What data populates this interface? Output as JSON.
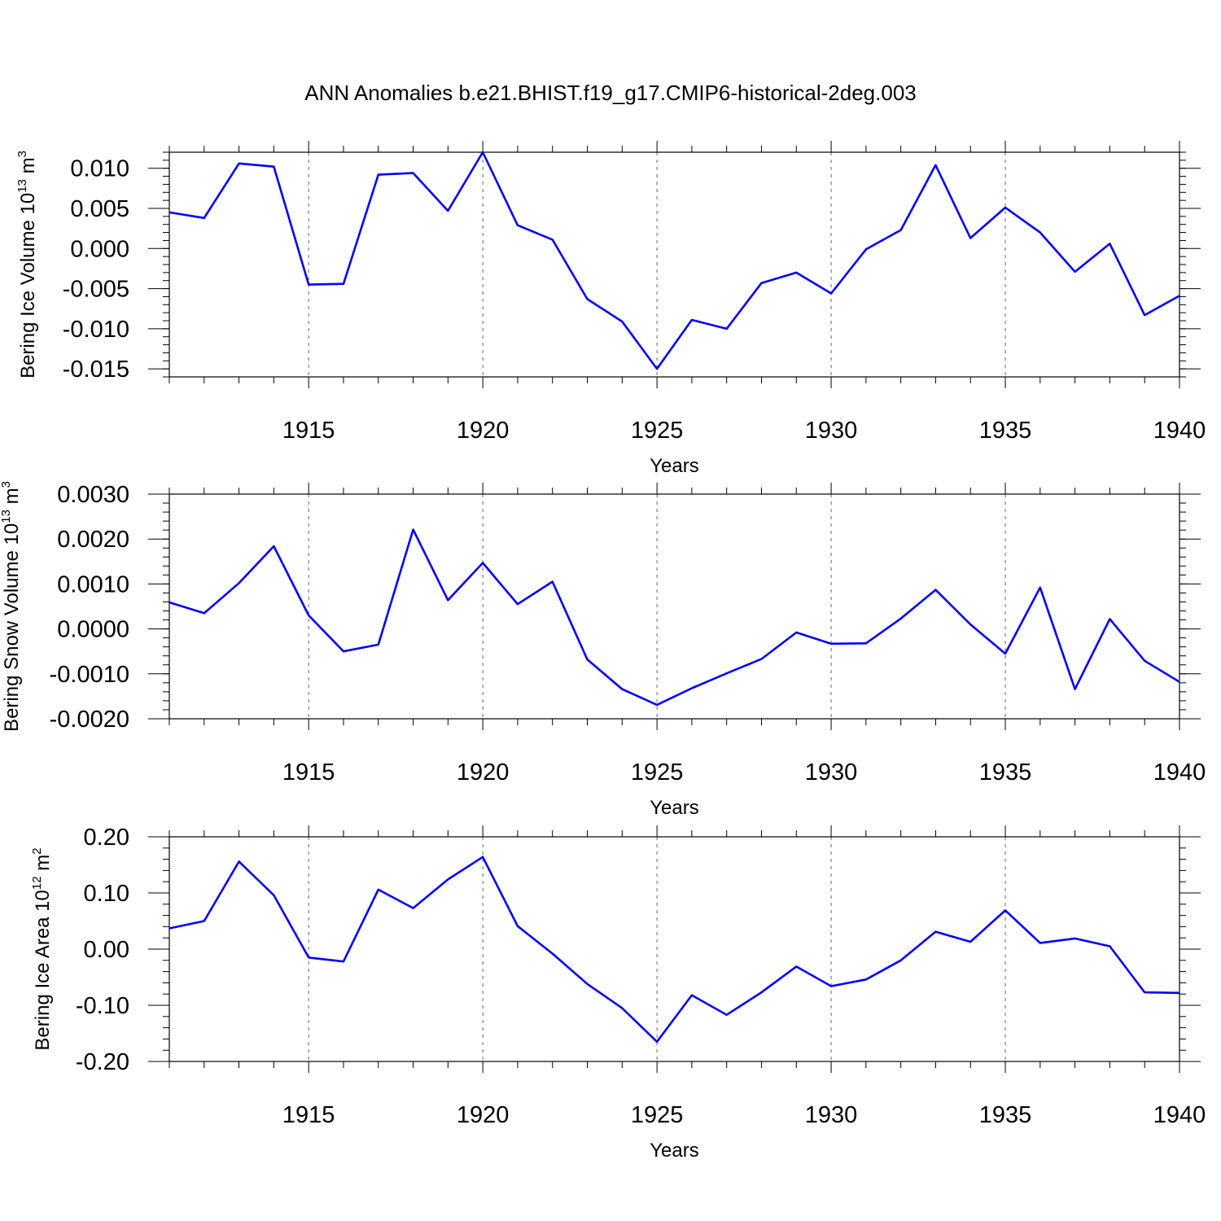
{
  "title": "ANN Anomalies b.e21.BHIST.f19_g17.CMIP6-historical-2deg.003",
  "series_color": "#0000ff",
  "chart_data": [
    {
      "type": "line",
      "title": "ANN Anomalies b.e21.BHIST.f19_g17.CMIP6-historical-2deg.003",
      "xlabel": "Years",
      "ylabel": {
        "text": "Bering Ice Volume 10",
        "sup": "13",
        "unit": " m",
        "unit_sup": "3"
      },
      "x": [
        1911,
        1912,
        1913,
        1914,
        1915,
        1916,
        1917,
        1918,
        1919,
        1920,
        1921,
        1922,
        1923,
        1924,
        1925,
        1926,
        1927,
        1928,
        1929,
        1930,
        1931,
        1932,
        1933,
        1934,
        1935,
        1936,
        1937,
        1938,
        1939,
        1940
      ],
      "y": [
        0.0045,
        0.0038,
        0.0106,
        0.0102,
        -0.0045,
        -0.0044,
        0.0092,
        0.0094,
        0.0047,
        0.012,
        0.0029,
        0.0011,
        -0.0063,
        -0.0091,
        -0.015,
        -0.0089,
        -0.01,
        -0.0043,
        -0.003,
        -0.0056,
        -0.0001,
        0.0023,
        0.0104,
        0.0013,
        0.0051,
        0.002,
        -0.0029,
        0.0006,
        -0.0083,
        -0.0059
      ],
      "xlim": [
        1911,
        1940
      ],
      "ylim": [
        -0.016,
        0.012
      ],
      "xticks": [
        1915,
        1920,
        1925,
        1930,
        1935,
        1940
      ],
      "xtick_labels": [
        "1915",
        "1920",
        "1925",
        "1930",
        "1935",
        "1940"
      ],
      "yticks": [
        -0.015,
        -0.01,
        -0.005,
        0.0,
        0.005,
        0.01
      ],
      "ytick_labels": [
        "-0.015",
        "-0.010",
        "-0.005",
        "0.000",
        "0.005",
        "0.010"
      ],
      "yminor_step": 0.001,
      "grid": "vertical dashed at major x ticks"
    },
    {
      "type": "line",
      "xlabel": "Years",
      "ylabel": {
        "text": "Bering Snow Volume 10",
        "sup": "13",
        "unit": " m",
        "unit_sup": "3"
      },
      "x": [
        1911,
        1912,
        1913,
        1914,
        1915,
        1916,
        1917,
        1918,
        1919,
        1920,
        1921,
        1922,
        1923,
        1924,
        1925,
        1926,
        1927,
        1928,
        1929,
        1930,
        1931,
        1932,
        1933,
        1934,
        1935,
        1936,
        1937,
        1938,
        1939,
        1940
      ],
      "y": [
        0.00059,
        0.00035,
        0.00102,
        0.00184,
        0.0003,
        -0.0005,
        -0.00035,
        0.00221,
        0.00064,
        0.00147,
        0.00055,
        0.00105,
        -0.00068,
        -0.00134,
        -0.00169,
        -0.00132,
        -0.00099,
        -0.00067,
        -8e-05,
        -0.00033,
        -0.00032,
        0.00023,
        0.00087,
        0.0001,
        -0.00055,
        0.00092,
        -0.00134,
        0.00022,
        -0.00071,
        -0.00118
      ],
      "xlim": [
        1911,
        1940
      ],
      "ylim": [
        -0.002,
        0.003
      ],
      "xticks": [
        1915,
        1920,
        1925,
        1930,
        1935,
        1940
      ],
      "xtick_labels": [
        "1915",
        "1920",
        "1925",
        "1930",
        "1935",
        "1940"
      ],
      "yticks": [
        -0.002,
        -0.001,
        0.0,
        0.001,
        0.002,
        0.003
      ],
      "ytick_labels": [
        "-0.0020",
        "-0.0010",
        "0.0000",
        "0.0010",
        "0.0020",
        "0.0030"
      ],
      "yminor_step": 0.0002,
      "grid": "vertical dashed at major x ticks"
    },
    {
      "type": "line",
      "xlabel": "Years",
      "ylabel": {
        "text": "Bering Ice Area 10",
        "sup": "12",
        "unit": " m",
        "unit_sup": "2"
      },
      "x": [
        1911,
        1912,
        1913,
        1914,
        1915,
        1916,
        1917,
        1918,
        1919,
        1920,
        1921,
        1922,
        1923,
        1924,
        1925,
        1926,
        1927,
        1928,
        1929,
        1930,
        1931,
        1932,
        1933,
        1934,
        1935,
        1936,
        1937,
        1938,
        1939,
        1940
      ],
      "y": [
        0.037,
        0.05,
        0.156,
        0.096,
        -0.015,
        -0.022,
        0.106,
        0.073,
        0.124,
        0.164,
        0.041,
        -0.008,
        -0.062,
        -0.105,
        -0.165,
        -0.082,
        -0.117,
        -0.077,
        -0.031,
        -0.066,
        -0.054,
        -0.02,
        0.031,
        0.013,
        0.069,
        0.011,
        0.019,
        0.005,
        -0.077,
        -0.078
      ],
      "xlim": [
        1911,
        1940
      ],
      "ylim": [
        -0.2,
        0.2
      ],
      "xticks": [
        1915,
        1920,
        1925,
        1930,
        1935,
        1940
      ],
      "xtick_labels": [
        "1915",
        "1920",
        "1925",
        "1930",
        "1935",
        "1940"
      ],
      "yticks": [
        -0.2,
        -0.1,
        0.0,
        0.1,
        0.2
      ],
      "ytick_labels": [
        "-0.20",
        "-0.10",
        "0.00",
        "0.10",
        "0.20"
      ],
      "yminor_step": 0.02,
      "grid": "vertical dashed at major x ticks"
    }
  ]
}
